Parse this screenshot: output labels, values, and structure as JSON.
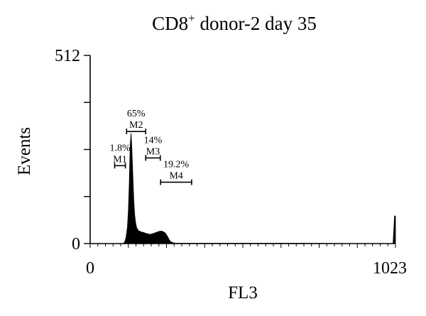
{
  "chart_data": {
    "type": "histogram",
    "title": {
      "prefix": "CD8",
      "superscript": "+",
      "suffix": " donor-2 day 35"
    },
    "xlabel": "FL3",
    "ylabel": "Events",
    "xlim": [
      0,
      1023
    ],
    "ylim": [
      0,
      512
    ],
    "x_tick_labels": [
      "0",
      "1023"
    ],
    "y_tick_labels": [
      "0",
      "512"
    ],
    "grid": false,
    "fill_color": "#000000",
    "histogram": {
      "x": [
        110,
        115,
        120,
        125,
        128,
        131,
        134,
        137,
        140,
        143,
        146,
        149,
        152,
        155,
        158,
        161,
        164,
        167,
        170,
        175,
        180,
        185,
        190,
        195,
        200,
        210,
        220,
        230,
        240,
        250,
        255,
        260,
        265,
        270,
        275,
        280,
        285,
        290,
        300,
        320,
        340,
        380,
        500,
        700,
        900,
        1010,
        1015,
        1020,
        1023
      ],
      "y": [
        0,
        3,
        15,
        45,
        90,
        165,
        265,
        300,
        255,
        185,
        120,
        80,
        58,
        45,
        40,
        36,
        34,
        33,
        32,
        31,
        30,
        28,
        27,
        26,
        25,
        27,
        30,
        33,
        34,
        30,
        25,
        18,
        10,
        5,
        3,
        2,
        1,
        1,
        1,
        1,
        1,
        1,
        1,
        1,
        0,
        0,
        0,
        75,
        75
      ]
    },
    "markers": [
      {
        "name": "M1",
        "percent": "1.8%",
        "x_start": 82,
        "x_end": 118,
        "y": 212
      },
      {
        "name": "M2",
        "percent": "65%",
        "x_start": 122,
        "x_end": 186,
        "y": 305
      },
      {
        "name": "M3",
        "percent": "14%",
        "x_start": 186,
        "x_end": 235,
        "y": 233
      },
      {
        "name": "M4",
        "percent": "19.2%",
        "x_start": 236,
        "x_end": 340,
        "y": 167
      }
    ]
  }
}
